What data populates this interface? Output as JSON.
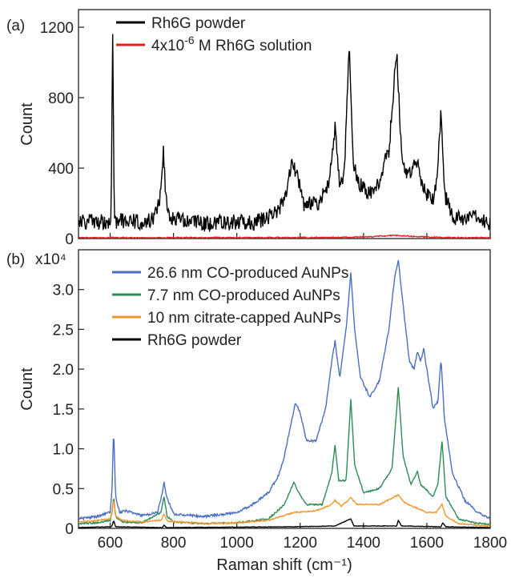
{
  "chart_data": [
    {
      "type": "line",
      "panel_label": "(a)",
      "ylabel": "Count",
      "xlim": [
        500,
        1800
      ],
      "ylim": [
        0,
        1300
      ],
      "y_ticks": [
        0,
        400,
        800,
        1200
      ],
      "y_tick_labels": [
        "0",
        "400",
        "800",
        "1200"
      ],
      "legend_position": "top-center",
      "series": [
        {
          "name": "Rh6G powder",
          "color": "#000000",
          "noise": 45,
          "points": [
            [
              500,
              90
            ],
            [
              540,
              100
            ],
            [
              570,
              95
            ],
            [
              598,
              100
            ],
            [
              603,
              150
            ],
            [
              608,
              1140
            ],
            [
              613,
              150
            ],
            [
              620,
              100
            ],
            [
              660,
              105
            ],
            [
              700,
              90
            ],
            [
              740,
              110
            ],
            [
              760,
              250
            ],
            [
              768,
              520
            ],
            [
              775,
              250
            ],
            [
              790,
              110
            ],
            [
              850,
              95
            ],
            [
              900,
              80
            ],
            [
              950,
              90
            ],
            [
              1000,
              95
            ],
            [
              1050,
              90
            ],
            [
              1100,
              120
            ],
            [
              1150,
              200
            ],
            [
              1175,
              440
            ],
            [
              1190,
              360
            ],
            [
              1210,
              200
            ],
            [
              1260,
              190
            ],
            [
              1290,
              330
            ],
            [
              1310,
              620
            ],
            [
              1325,
              280
            ],
            [
              1340,
              380
            ],
            [
              1355,
              1100
            ],
            [
              1368,
              420
            ],
            [
              1390,
              300
            ],
            [
              1420,
              250
            ],
            [
              1450,
              330
            ],
            [
              1480,
              500
            ],
            [
              1505,
              1070
            ],
            [
              1520,
              460
            ],
            [
              1540,
              340
            ],
            [
              1555,
              420
            ],
            [
              1565,
              470
            ],
            [
              1580,
              350
            ],
            [
              1600,
              250
            ],
            [
              1620,
              210
            ],
            [
              1635,
              400
            ],
            [
              1645,
              730
            ],
            [
              1655,
              260
            ],
            [
              1680,
              120
            ],
            [
              1720,
              110
            ],
            [
              1760,
              120
            ],
            [
              1800,
              90
            ]
          ]
        },
        {
          "name": "4x10-6 M Rh6G solution",
          "color": "#e02020",
          "noise": 3,
          "points": [
            [
              500,
              5
            ],
            [
              1300,
              6
            ],
            [
              1420,
              10
            ],
            [
              1500,
              18
            ],
            [
              1560,
              12
            ],
            [
              1650,
              6
            ],
            [
              1800,
              5
            ]
          ]
        }
      ]
    },
    {
      "type": "line",
      "panel_label": "(b)",
      "ylabel": "Count",
      "y_multiplier": "x10⁴",
      "xlabel": "Raman shift (cm⁻¹)",
      "xlim": [
        500,
        1800
      ],
      "ylim": [
        0,
        3.5
      ],
      "x_ticks": [
        600,
        800,
        1000,
        1200,
        1400,
        1600,
        1800
      ],
      "x_tick_labels": [
        "600",
        "800",
        "1000",
        "1200",
        "1400",
        "1600",
        "1800"
      ],
      "y_ticks": [
        0,
        0.5,
        1.0,
        1.5,
        2.0,
        2.5,
        3.0
      ],
      "y_tick_labels": [
        "0",
        "0.5",
        "1.0",
        "1.5",
        "2.0",
        "2.5",
        "3.0"
      ],
      "legend_position": "top-left",
      "series": [
        {
          "name": "26.6 nm CO-produced AuNPs",
          "color": "#4a6fc0",
          "noise": 0.015,
          "points": [
            [
              500,
              0.12
            ],
            [
              560,
              0.15
            ],
            [
              600,
              0.2
            ],
            [
              606,
              0.5
            ],
            [
              611,
              1.27
            ],
            [
              617,
              0.4
            ],
            [
              630,
              0.2
            ],
            [
              650,
              0.22
            ],
            [
              700,
              0.16
            ],
            [
              750,
              0.2
            ],
            [
              765,
              0.45
            ],
            [
              770,
              0.59
            ],
            [
              778,
              0.4
            ],
            [
              800,
              0.18
            ],
            [
              900,
              0.15
            ],
            [
              1000,
              0.2
            ],
            [
              1050,
              0.3
            ],
            [
              1100,
              0.45
            ],
            [
              1130,
              0.65
            ],
            [
              1150,
              0.9
            ],
            [
              1170,
              1.3
            ],
            [
              1185,
              1.58
            ],
            [
              1200,
              1.45
            ],
            [
              1220,
              1.1
            ],
            [
              1250,
              1.1
            ],
            [
              1280,
              1.5
            ],
            [
              1300,
              2.1
            ],
            [
              1310,
              2.35
            ],
            [
              1325,
              1.9
            ],
            [
              1345,
              2.5
            ],
            [
              1360,
              3.2
            ],
            [
              1372,
              2.5
            ],
            [
              1390,
              1.9
            ],
            [
              1420,
              1.65
            ],
            [
              1450,
              1.85
            ],
            [
              1480,
              2.5
            ],
            [
              1500,
              3.2
            ],
            [
              1510,
              3.37
            ],
            [
              1525,
              2.8
            ],
            [
              1545,
              2.1
            ],
            [
              1560,
              2.0
            ],
            [
              1570,
              2.22
            ],
            [
              1580,
              2.1
            ],
            [
              1590,
              2.25
            ],
            [
              1600,
              2.0
            ],
            [
              1620,
              1.5
            ],
            [
              1635,
              1.6
            ],
            [
              1645,
              2.14
            ],
            [
              1655,
              1.4
            ],
            [
              1680,
              0.7
            ],
            [
              1720,
              0.35
            ],
            [
              1760,
              0.2
            ],
            [
              1800,
              0.12
            ]
          ]
        },
        {
          "name": "7.7 nm CO-produced AuNPs",
          "color": "#2e8b57",
          "noise": 0.01,
          "points": [
            [
              500,
              0.06
            ],
            [
              560,
              0.07
            ],
            [
              600,
              0.1
            ],
            [
              606,
              0.2
            ],
            [
              611,
              0.4
            ],
            [
              617,
              0.15
            ],
            [
              640,
              0.08
            ],
            [
              700,
              0.07
            ],
            [
              760,
              0.2
            ],
            [
              770,
              0.4
            ],
            [
              780,
              0.15
            ],
            [
              800,
              0.08
            ],
            [
              900,
              0.06
            ],
            [
              1000,
              0.07
            ],
            [
              1100,
              0.12
            ],
            [
              1150,
              0.3
            ],
            [
              1180,
              0.58
            ],
            [
              1195,
              0.45
            ],
            [
              1220,
              0.3
            ],
            [
              1270,
              0.3
            ],
            [
              1300,
              0.7
            ],
            [
              1310,
              1.05
            ],
            [
              1322,
              0.6
            ],
            [
              1345,
              0.6
            ],
            [
              1360,
              1.62
            ],
            [
              1372,
              0.8
            ],
            [
              1400,
              0.45
            ],
            [
              1450,
              0.5
            ],
            [
              1490,
              0.75
            ],
            [
              1510,
              1.78
            ],
            [
              1525,
              0.9
            ],
            [
              1550,
              0.55
            ],
            [
              1570,
              0.72
            ],
            [
              1580,
              0.55
            ],
            [
              1595,
              0.5
            ],
            [
              1620,
              0.4
            ],
            [
              1635,
              0.55
            ],
            [
              1648,
              1.1
            ],
            [
              1660,
              0.4
            ],
            [
              1700,
              0.12
            ],
            [
              1750,
              0.07
            ],
            [
              1800,
              0.05
            ]
          ]
        },
        {
          "name": "10 nm citrate-capped AuNPs",
          "color": "#f5962c",
          "noise": 0.008,
          "points": [
            [
              500,
              0.08
            ],
            [
              560,
              0.1
            ],
            [
              600,
              0.12
            ],
            [
              606,
              0.22
            ],
            [
              611,
              0.37
            ],
            [
              617,
              0.15
            ],
            [
              640,
              0.1
            ],
            [
              700,
              0.08
            ],
            [
              760,
              0.1
            ],
            [
              770,
              0.18
            ],
            [
              780,
              0.09
            ],
            [
              900,
              0.06
            ],
            [
              1000,
              0.07
            ],
            [
              1100,
              0.1
            ],
            [
              1180,
              0.2
            ],
            [
              1250,
              0.22
            ],
            [
              1300,
              0.3
            ],
            [
              1310,
              0.35
            ],
            [
              1330,
              0.28
            ],
            [
              1360,
              0.38
            ],
            [
              1380,
              0.3
            ],
            [
              1450,
              0.3
            ],
            [
              1480,
              0.36
            ],
            [
              1510,
              0.42
            ],
            [
              1530,
              0.32
            ],
            [
              1570,
              0.25
            ],
            [
              1600,
              0.2
            ],
            [
              1630,
              0.2
            ],
            [
              1648,
              0.3
            ],
            [
              1660,
              0.15
            ],
            [
              1700,
              0.06
            ],
            [
              1750,
              0.04
            ],
            [
              1800,
              0.03
            ]
          ]
        },
        {
          "name": "Rh6G powder",
          "color": "#000000",
          "noise": 0.003,
          "points": [
            [
              500,
              0.01
            ],
            [
              605,
              0.02
            ],
            [
              611,
              0.1
            ],
            [
              617,
              0.02
            ],
            [
              765,
              0.01
            ],
            [
              770,
              0.04
            ],
            [
              778,
              0.01
            ],
            [
              1180,
              0.02
            ],
            [
              1310,
              0.03
            ],
            [
              1360,
              0.12
            ],
            [
              1370,
              0.03
            ],
            [
              1505,
              0.03
            ],
            [
              1510,
              0.1
            ],
            [
              1520,
              0.03
            ],
            [
              1645,
              0.02
            ],
            [
              1650,
              0.07
            ],
            [
              1660,
              0.02
            ],
            [
              1800,
              0.01
            ]
          ]
        }
      ]
    }
  ]
}
